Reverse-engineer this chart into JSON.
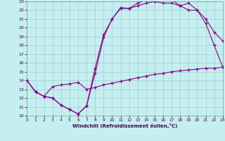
{
  "xlabel": "Windchill (Refroidissement éolien,°C)",
  "bg_color": "#c5eef0",
  "grid_color": "#9ecece",
  "line_color": "#880088",
  "xlim": [
    0,
    23
  ],
  "ylim": [
    10,
    23
  ],
  "xticks": [
    0,
    1,
    2,
    3,
    4,
    5,
    6,
    7,
    8,
    9,
    10,
    11,
    12,
    13,
    14,
    15,
    16,
    17,
    18,
    19,
    20,
    21,
    22,
    23
  ],
  "yticks": [
    10,
    11,
    12,
    13,
    14,
    15,
    16,
    17,
    18,
    19,
    20,
    21,
    22,
    23
  ],
  "line1_x": [
    0,
    1,
    2,
    3,
    4,
    5,
    6,
    7,
    8,
    9,
    10,
    11,
    12,
    13,
    14,
    15,
    16,
    17,
    18,
    19,
    20,
    21,
    22,
    23
  ],
  "line1_y": [
    14.0,
    12.7,
    12.2,
    13.3,
    13.5,
    13.6,
    13.8,
    13.0,
    13.2,
    13.5,
    13.7,
    13.9,
    14.1,
    14.3,
    14.5,
    14.7,
    14.8,
    15.0,
    15.1,
    15.2,
    15.3,
    15.4,
    15.4,
    15.5
  ],
  "line2_x": [
    0,
    1,
    2,
    3,
    4,
    5,
    6,
    7,
    8,
    9,
    10,
    11,
    12,
    13,
    14,
    15,
    16,
    17,
    18,
    19,
    20,
    21,
    22,
    23
  ],
  "line2_y": [
    14.0,
    12.7,
    12.2,
    12.0,
    11.2,
    10.7,
    10.2,
    11.1,
    14.8,
    18.9,
    21.0,
    22.2,
    22.2,
    22.5,
    22.8,
    23.0,
    22.8,
    22.8,
    22.5,
    22.0,
    22.0,
    21.0,
    19.5,
    18.5
  ],
  "line3_x": [
    0,
    1,
    2,
    3,
    4,
    5,
    6,
    7,
    8,
    9,
    10,
    11,
    12,
    13,
    14,
    15,
    16,
    17,
    18,
    19,
    20,
    21,
    22,
    23
  ],
  "line3_y": [
    14.0,
    12.7,
    12.2,
    12.0,
    11.2,
    10.7,
    10.2,
    11.1,
    15.4,
    19.2,
    21.0,
    22.3,
    22.2,
    22.8,
    23.2,
    23.0,
    23.2,
    23.2,
    22.5,
    22.8,
    22.0,
    20.5,
    18.0,
    15.5
  ]
}
